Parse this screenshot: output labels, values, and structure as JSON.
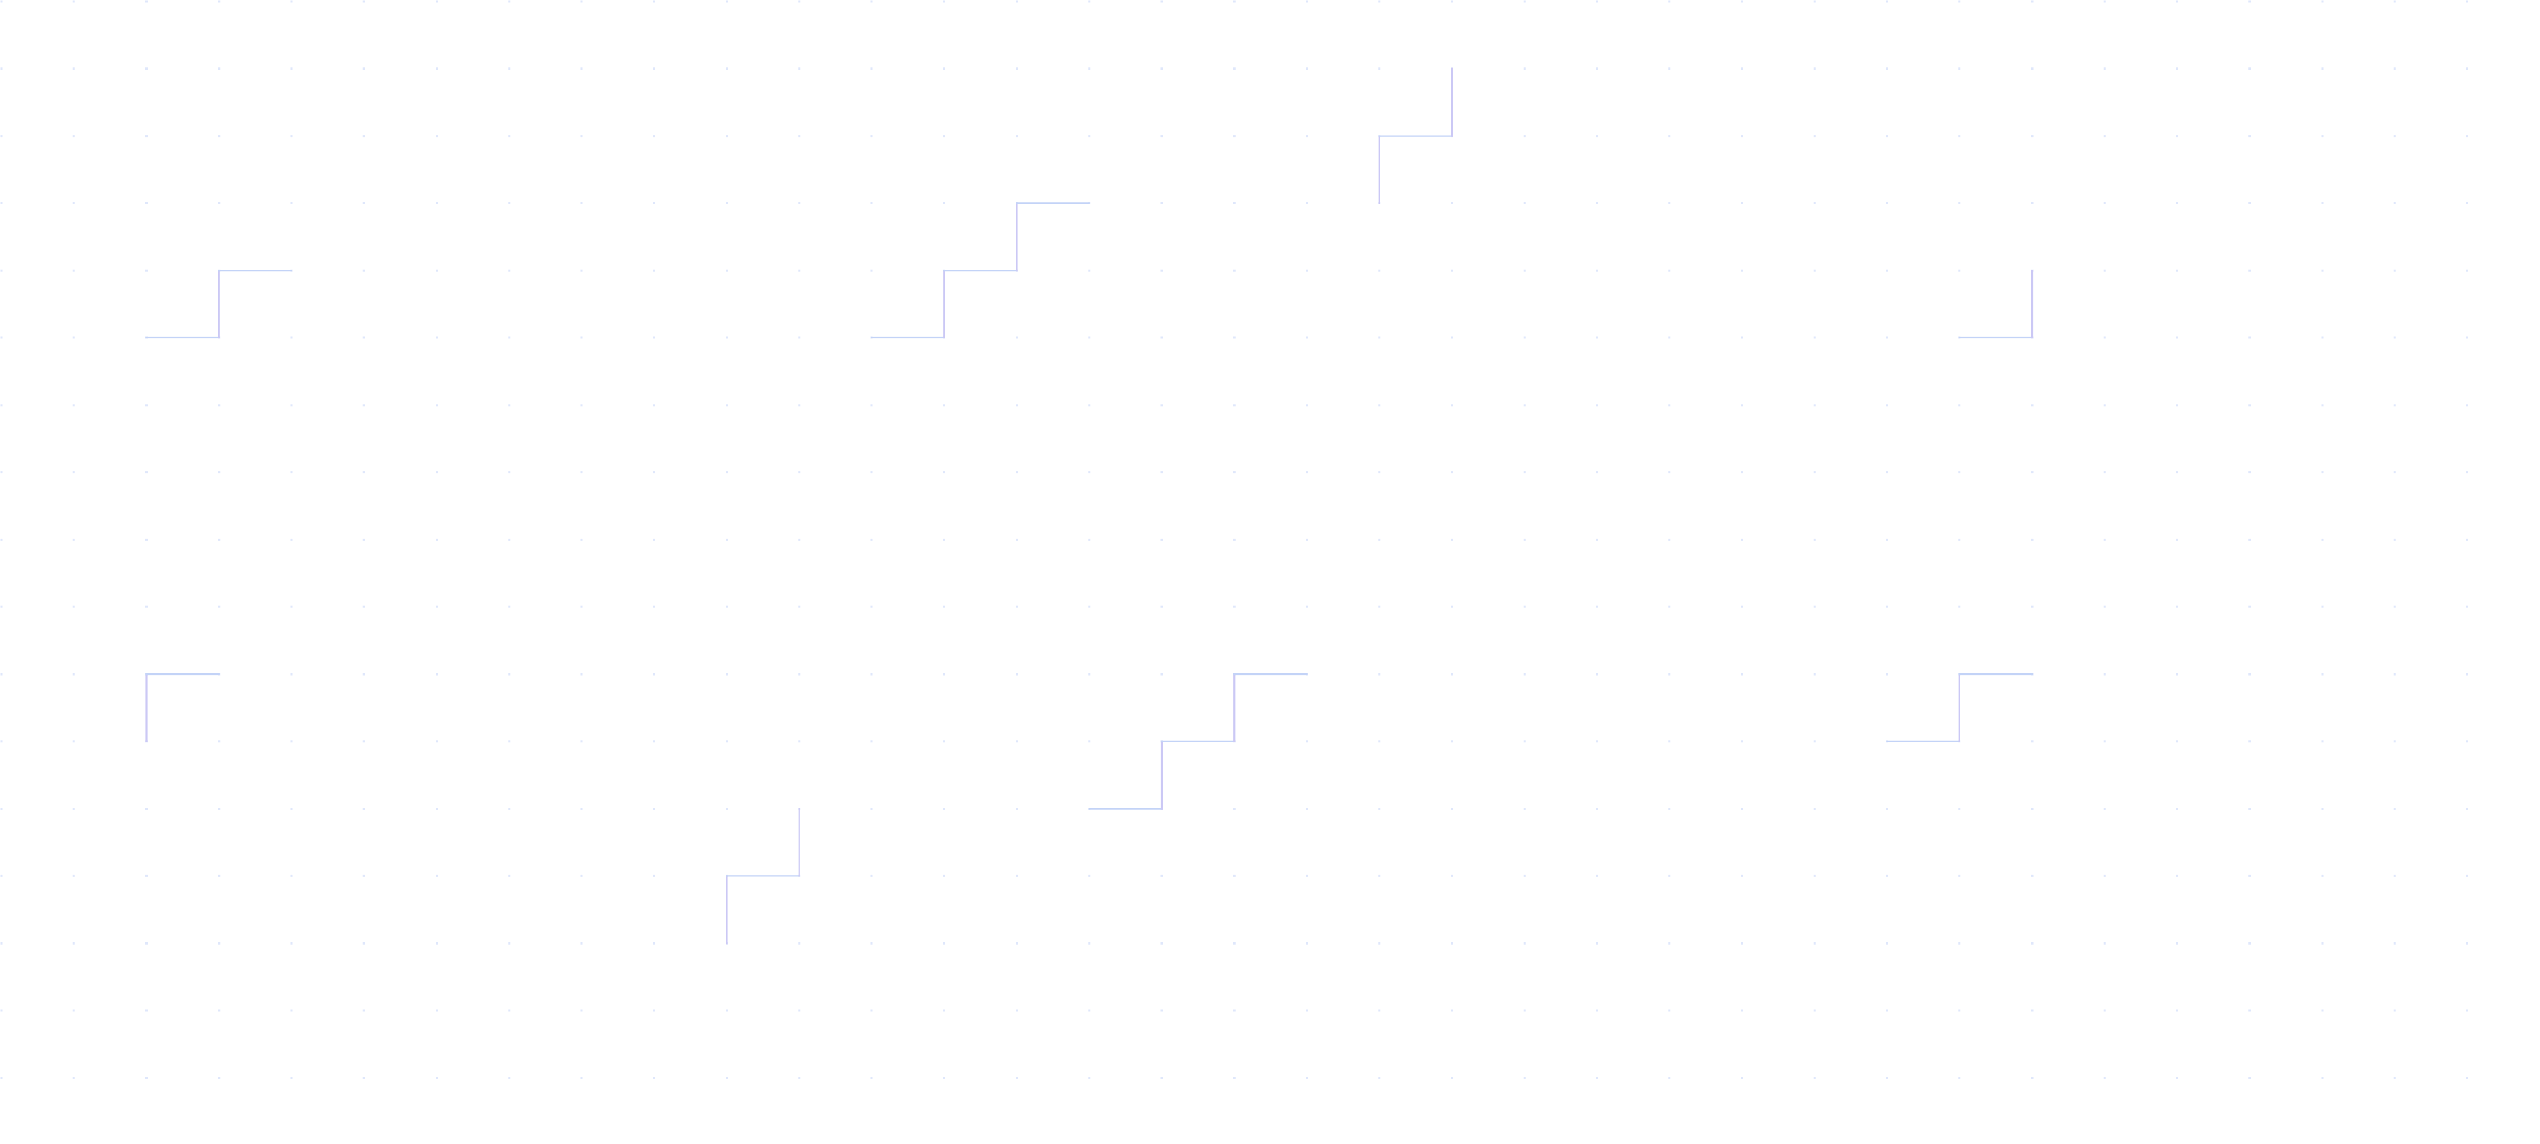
{
  "background": {
    "color": "#ffffff",
    "dot_color": "#dfe7fb",
    "line_color_horizontal": "#c3d3f7",
    "line_color_vertical": "#cbc8f5"
  }
}
